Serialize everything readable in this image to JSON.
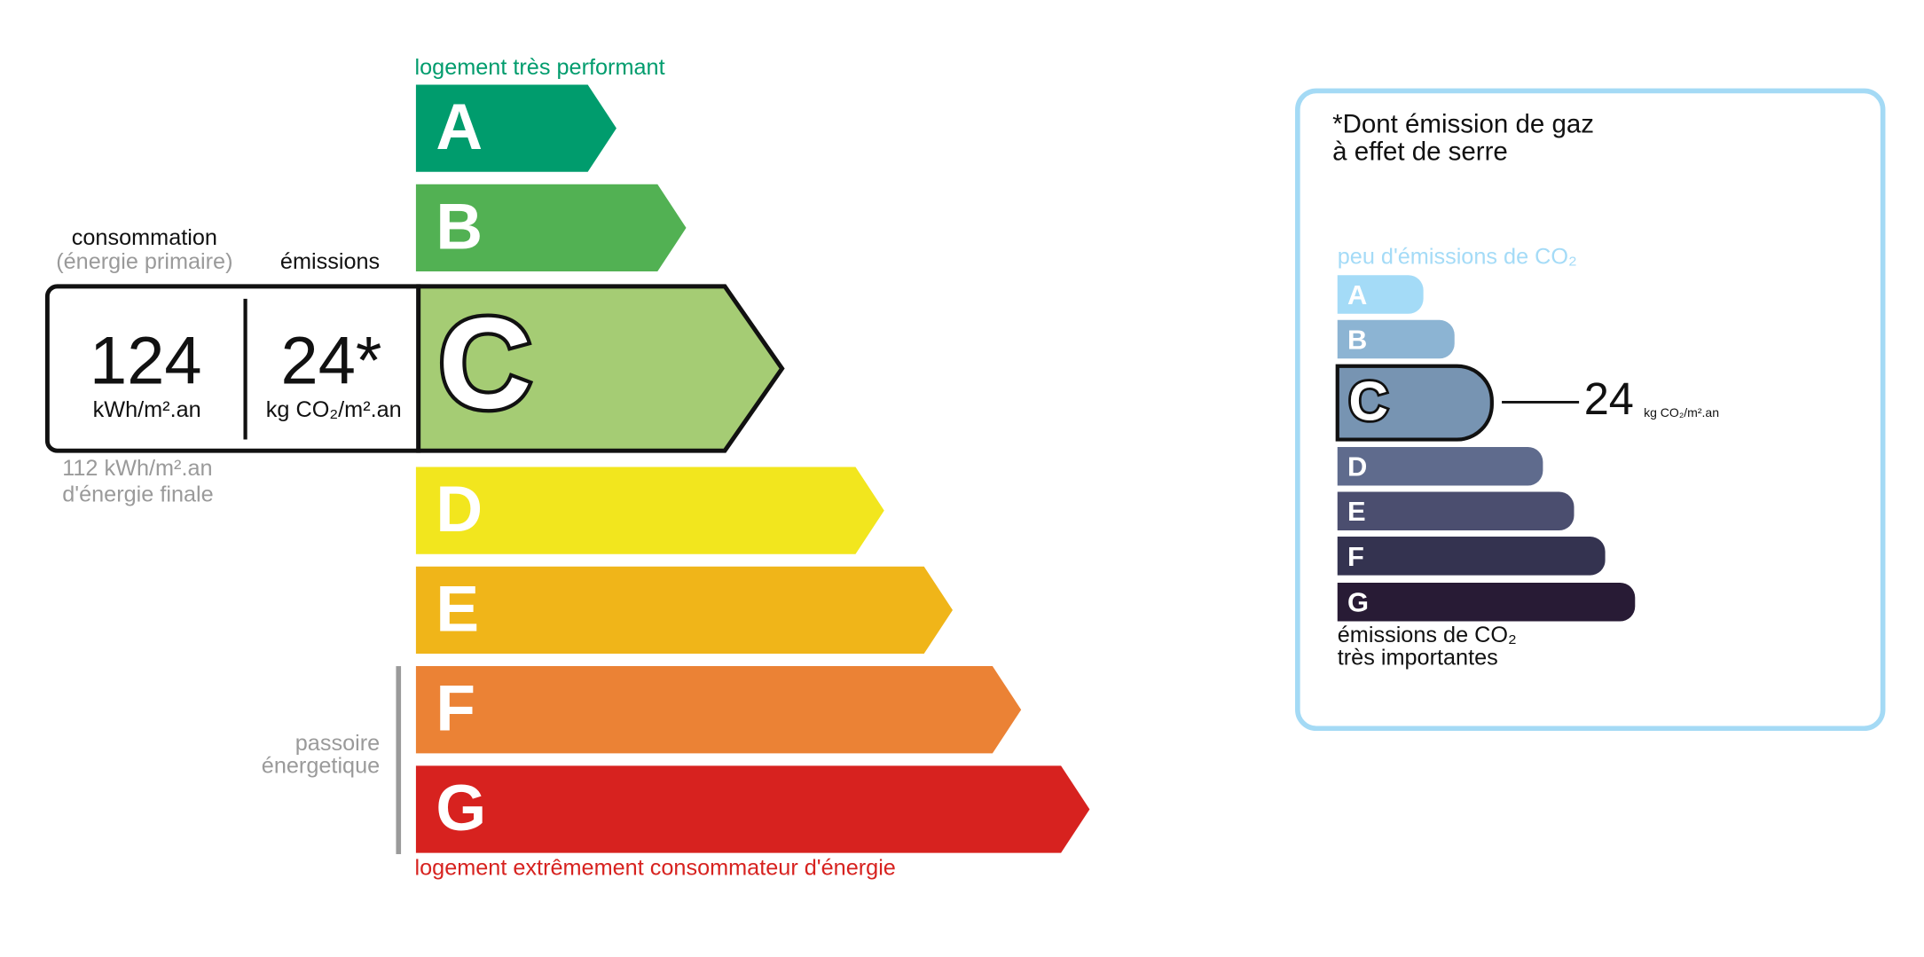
{
  "energy": {
    "top_label": "logement très performant",
    "bottom_label": "logement extrêmement consommateur d'énergie",
    "classes": [
      {
        "letter": "A",
        "color": "#009c6d"
      },
      {
        "letter": "B",
        "color": "#52b153"
      },
      {
        "letter": "C",
        "color": "#a5cc74",
        "highlight": true
      },
      {
        "letter": "D",
        "color": "#f2e61e"
      },
      {
        "letter": "E",
        "color": "#f0b519"
      },
      {
        "letter": "F",
        "color": "#eb8235"
      },
      {
        "letter": "G",
        "color": "#d7221f"
      }
    ],
    "passoire_line1": "passoire",
    "passoire_line2": "énergetique"
  },
  "consumption": {
    "heading": "consommation",
    "subheading": "(énergie primaire)",
    "value": 124,
    "unit": "kWh/m².an",
    "final_line1": "112 kWh/m².an",
    "final_line2": "d'énergie finale"
  },
  "emissions": {
    "heading": "émissions",
    "value": "24*",
    "unit": "kg CO₂/m².an"
  },
  "climate": {
    "title_line1": "*Dont émission de gaz",
    "title_line2": "à effet de serre",
    "top_label": "peu d'émissions de CO₂",
    "bottom_line1": "émissions de CO₂",
    "bottom_line2": "très importantes",
    "classes": [
      {
        "letter": "A",
        "color": "#a4dbf7"
      },
      {
        "letter": "B",
        "color": "#8cb4d3"
      },
      {
        "letter": "C",
        "color": "#7794b2",
        "highlight": true
      },
      {
        "letter": "D",
        "color": "#5f6b8d"
      },
      {
        "letter": "E",
        "color": "#4b4e6f"
      },
      {
        "letter": "F",
        "color": "#343350"
      },
      {
        "letter": "G",
        "color": "#281b35"
      }
    ],
    "value": 24,
    "unit": "kg CO₂/m².an"
  }
}
